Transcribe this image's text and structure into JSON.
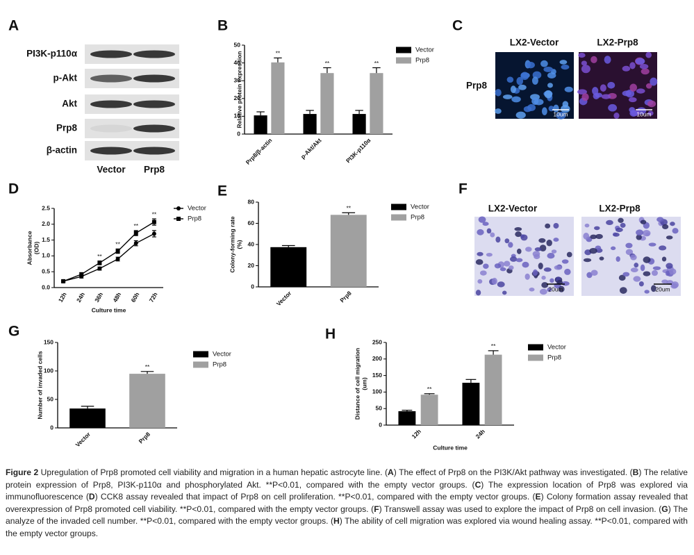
{
  "blot": {
    "label": "A",
    "rows": [
      "PI3K-p110α",
      "p-Akt",
      "Akt",
      "Prp8",
      "β-actin"
    ],
    "columns": [
      "Vector",
      "Prp8"
    ]
  },
  "immunofluorescence": {
    "label": "C",
    "row_label": "Prp8",
    "titles": [
      "LX2-Vector",
      "LX2-Prp8"
    ],
    "scale_bars": [
      "10um",
      "10um"
    ]
  },
  "transwell": {
    "label": "F",
    "titles": [
      "LX2-Vector",
      "LX2-Prp8"
    ],
    "scale_bars": [
      "20um",
      "20um"
    ]
  },
  "chart_data": [
    {
      "type": "bar",
      "label": "B",
      "ylabel": "Relative protein expression",
      "categories": [
        "Prp8/β-actin",
        "p-Akt/Akt",
        "PI3K-p110α"
      ],
      "series": [
        {
          "name": "Vector",
          "color": "#000000",
          "values": [
            10.5,
            11.3,
            11.3
          ],
          "errors": [
            2,
            2,
            2
          ]
        },
        {
          "name": "Prp8",
          "color": "#a0a0a0",
          "values": [
            40.3,
            34.3,
            34.3
          ],
          "errors": [
            2.5,
            3,
            3
          ],
          "significance": [
            "**",
            "**",
            "**"
          ]
        }
      ],
      "ylim": [
        0,
        50
      ],
      "yticks": [
        0,
        10,
        20,
        30,
        40,
        50
      ],
      "legend": true
    },
    {
      "type": "line",
      "label": "D",
      "ylabel": [
        "Absorbance",
        "(OD)"
      ],
      "xlabel": "Culture time",
      "categories": [
        "12h",
        "24h",
        "36h",
        "48h",
        "60h",
        "72h"
      ],
      "series": [
        {
          "name": "Vector",
          "color": "#000000",
          "marker": "circle",
          "values": [
            0.2,
            0.35,
            0.6,
            0.9,
            1.4,
            1.7
          ],
          "errors": [
            0.03,
            0.05,
            0.05,
            0.06,
            0.08,
            0.1
          ]
        },
        {
          "name": "Prp8",
          "color": "#000000",
          "marker": "square",
          "values": [
            0.2,
            0.42,
            0.78,
            1.15,
            1.72,
            2.07
          ],
          "errors": [
            0.03,
            0.05,
            0.06,
            0.07,
            0.08,
            0.1
          ],
          "significance": [
            null,
            null,
            "**",
            "**",
            "**",
            "**"
          ]
        }
      ],
      "ylim": [
        0,
        2.5
      ],
      "yticks": [
        {
          "value": 0,
          "label": "0.0"
        },
        0.5,
        {
          "value": 1,
          "label": "1.0"
        },
        1.5,
        {
          "value": 2,
          "label": "2.0"
        },
        2.5
      ],
      "legend": true
    },
    {
      "type": "bar",
      "label": "E",
      "ylabel": [
        "Colony-forming rate",
        "(%)"
      ],
      "categories": [
        "Vector",
        "Prp8"
      ],
      "values": [
        37.5,
        68
      ],
      "errors": [
        1.5,
        2
      ],
      "colors": [
        "#000000",
        "#a0a0a0"
      ],
      "significance": [
        null,
        "**"
      ],
      "ylim": [
        0,
        80
      ],
      "yticks": [
        0,
        20,
        40,
        60,
        80
      ],
      "legend": true
    },
    {
      "type": "bar",
      "label": "G",
      "ylabel": "Number of invaded cells",
      "categories": [
        "Vector",
        "Prp8"
      ],
      "values": [
        34,
        95
      ],
      "errors": [
        4,
        4
      ],
      "colors": [
        "#000000",
        "#a0a0a0"
      ],
      "significance": [
        null,
        "**"
      ],
      "ylim": [
        0,
        150
      ],
      "yticks": [
        0,
        50,
        100,
        150
      ],
      "legend": true
    },
    {
      "type": "bar",
      "label": "H",
      "ylabel": [
        "Distance of cell migration",
        "(um)"
      ],
      "xlabel": "Culture time",
      "categories": [
        "12h",
        "24h"
      ],
      "series": [
        {
          "name": "Vector",
          "color": "#000000",
          "values": [
            42,
            128
          ],
          "errors": [
            3,
            10
          ]
        },
        {
          "name": "Prp8",
          "color": "#a0a0a0",
          "values": [
            92,
            213
          ],
          "errors": [
            3,
            12
          ],
          "significance": [
            "**",
            "**"
          ]
        }
      ],
      "ylim": [
        0,
        250
      ],
      "yticks": [
        0,
        50,
        100,
        150,
        200,
        250
      ],
      "legend": true
    }
  ],
  "caption": {
    "parts": [
      "Figure 2",
      " Upregulation of Prp8 promoted cell viability and migration in a human hepatic astrocyte line. (",
      "A",
      ") The effect of Prp8 on the PI3K/Akt pathway was investigated. (",
      "B",
      ") The relative protein expression of Prp8, PI3K-p110α and phosphorylated Akt. **P<0.01, compared with the empty vector groups. (",
      "C",
      ") The expression location of Prp8 was explored via immunofluorescence (",
      "D",
      ") CCK8 assay revealed that impact of Prp8 on cell proliferation. **P<0.01, compared with the empty vector groups. (",
      "E",
      ") Colony formation assay revealed that overexpression of Prp8 promoted cell viability. **P<0.01, compared with the empty vector groups. (",
      "F",
      ") Transwell assay was used to explore the impact of Prp8 on cell invasion. (",
      "G",
      ") The analyze of the invaded cell number. **P<0.01, compared with the empty vector groups. (",
      "H",
      ") The ability of cell migration was explored via wound healing assay. **P<0.01, compared with the empty vector groups."
    ]
  }
}
